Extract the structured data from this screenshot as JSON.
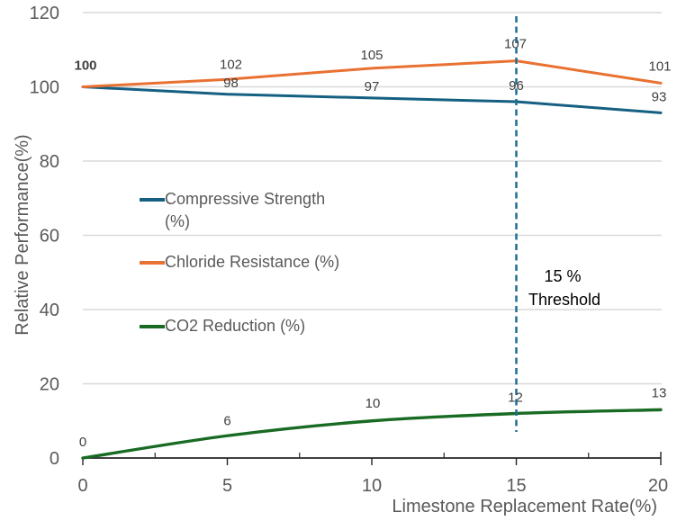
{
  "chart_data": {
    "type": "line",
    "title": "",
    "xlabel": "Limestone Replacement Rate(%)",
    "ylabel": "Relative Performance(%)",
    "x": [
      0,
      5,
      10,
      15,
      20
    ],
    "xlim": [
      0,
      20
    ],
    "ylim": [
      0,
      120
    ],
    "x_ticks": [
      0,
      5,
      10,
      15,
      20
    ],
    "x_minor_ticks": [
      2.5,
      7.5,
      12.5,
      17.5
    ],
    "y_ticks": [
      0,
      20,
      40,
      60,
      80,
      100,
      120
    ],
    "grid": "horizontal",
    "legend_position": "inside-left",
    "series": [
      {
        "name": "Compressive Strength (%)",
        "color": "#156082",
        "values": [
          100,
          98,
          97,
          96,
          93
        ],
        "data_labels": [
          null,
          "98",
          "97",
          "96",
          "93"
        ],
        "smooth": false
      },
      {
        "name": "Chloride Resistance (%)",
        "color": "#E97132",
        "values": [
          100,
          102,
          105,
          107,
          101
        ],
        "data_labels": [
          "100",
          "102",
          "105",
          "107",
          "101"
        ],
        "smooth": false
      },
      {
        "name": "CO2 Reduction (%)",
        "color": "#196B24",
        "values": [
          0,
          6,
          10,
          12,
          13
        ],
        "data_labels": [
          "0",
          "6",
          "10",
          "12",
          "13"
        ],
        "smooth": true
      }
    ],
    "annotations": {
      "threshold_line": {
        "x": 15,
        "style": "dashed",
        "color": "#1E6E94"
      },
      "threshold_label": {
        "line1": "15 %",
        "line2": "Threshold",
        "color": "#000000"
      }
    },
    "colors": {
      "background": "#FFFFFF",
      "gridline": "#D9D9D9",
      "axis_line": "#262626",
      "tick_labels": "#595959",
      "axis_titles": "#595959",
      "data_labels": "#404040"
    }
  }
}
